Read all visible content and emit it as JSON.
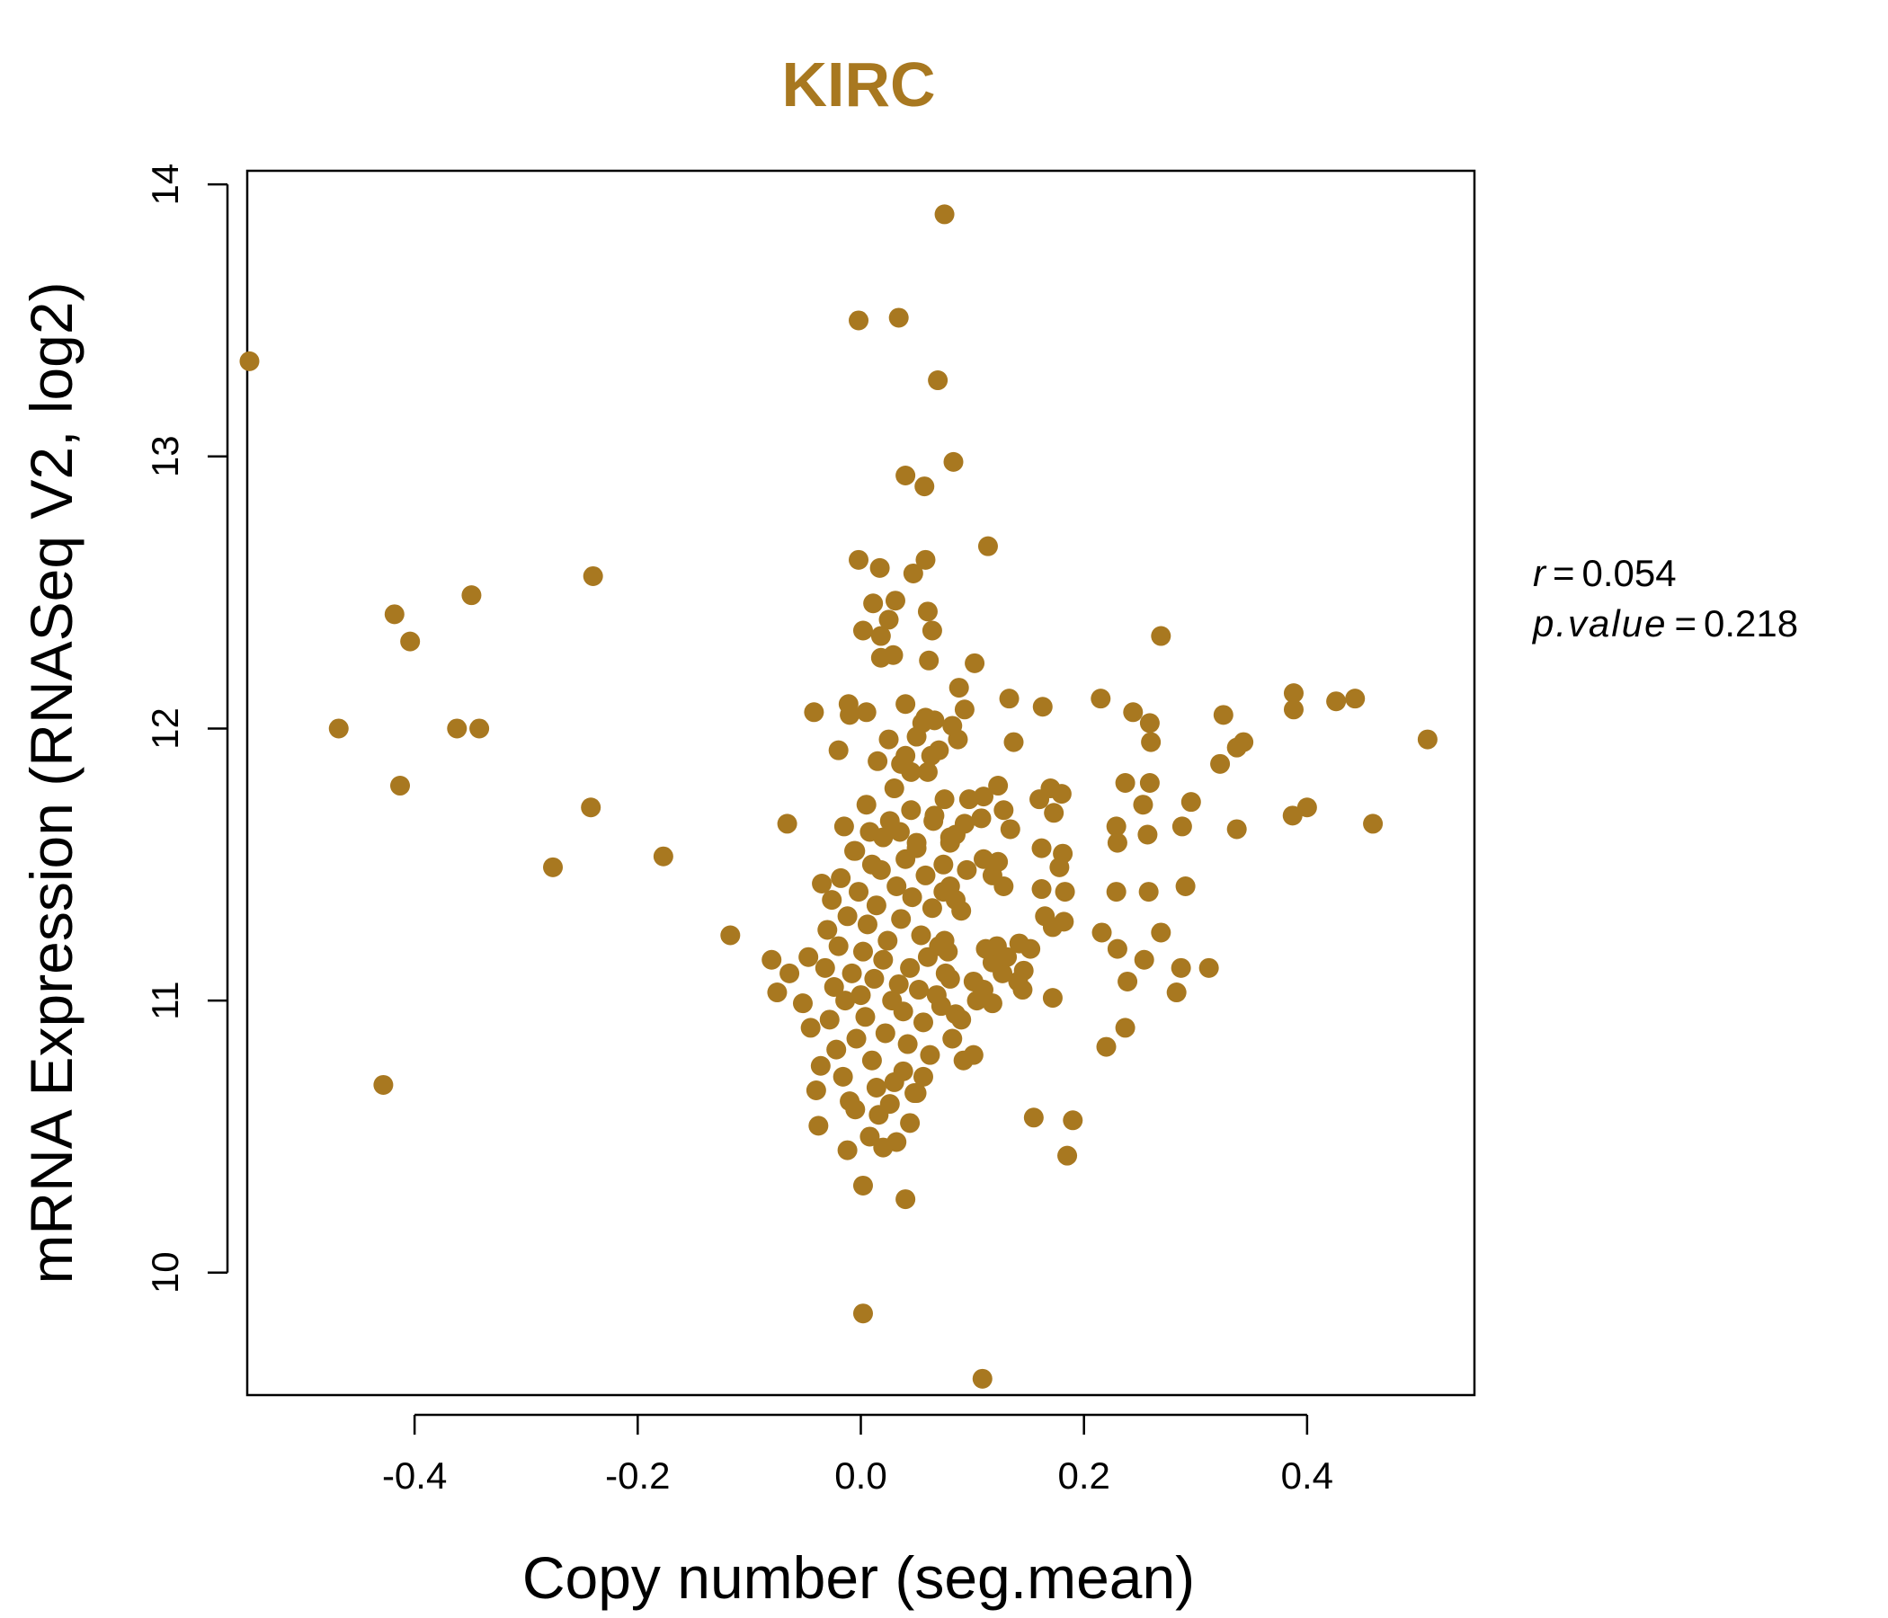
{
  "chart_data": {
    "type": "scatter",
    "title": "KIRC",
    "xlabel": "Copy number (seg.mean)",
    "ylabel": "mRNA Expression (RNASeq V2, log2)",
    "xlim": [
      -0.55,
      0.55
    ],
    "ylim": [
      9.55,
      14.05
    ],
    "x_ticks": [
      "-0.4",
      "-0.2",
      "0.0",
      "0.2",
      "0.4"
    ],
    "x_tick_values": [
      -0.4,
      -0.2,
      0.0,
      0.2,
      0.4
    ],
    "y_ticks": [
      "10",
      "11",
      "12",
      "13",
      "14"
    ],
    "y_tick_values": [
      10,
      11,
      12,
      13,
      14
    ],
    "grid": false,
    "point_color": "#A87820",
    "stats": {
      "r_label": "r",
      "r_value": "0.054",
      "p_label": "p.value",
      "p_value": "0.218"
    },
    "points": [
      [
        -0.548,
        13.35
      ],
      [
        -0.468,
        12.0
      ],
      [
        -0.418,
        12.42
      ],
      [
        -0.404,
        12.32
      ],
      [
        -0.413,
        11.79
      ],
      [
        -0.362,
        12.0
      ],
      [
        -0.349,
        12.49
      ],
      [
        -0.342,
        12.0
      ],
      [
        -0.428,
        10.69
      ],
      [
        -0.276,
        11.49
      ],
      [
        -0.24,
        12.56
      ],
      [
        -0.242,
        11.71
      ],
      [
        -0.177,
        11.53
      ],
      [
        -0.117,
        11.24
      ],
      [
        -0.066,
        11.65
      ],
      [
        -0.08,
        11.15
      ],
      [
        -0.075,
        11.03
      ],
      [
        -0.064,
        11.1
      ],
      [
        -0.052,
        10.99
      ],
      [
        -0.047,
        11.16
      ],
      [
        -0.045,
        10.9
      ],
      [
        -0.04,
        10.67
      ],
      [
        -0.038,
        10.54
      ],
      [
        -0.036,
        10.76
      ],
      [
        -0.035,
        11.43
      ],
      [
        -0.032,
        11.12
      ],
      [
        -0.03,
        11.26
      ],
      [
        -0.028,
        10.93
      ],
      [
        -0.026,
        11.37
      ],
      [
        -0.024,
        11.05
      ],
      [
        -0.022,
        10.82
      ],
      [
        -0.02,
        11.2
      ],
      [
        -0.018,
        11.45
      ],
      [
        -0.016,
        10.72
      ],
      [
        -0.014,
        11.0
      ],
      [
        -0.012,
        11.31
      ],
      [
        -0.01,
        10.63
      ],
      [
        -0.008,
        11.1
      ],
      [
        -0.006,
        11.55
      ],
      [
        -0.004,
        10.86
      ],
      [
        -0.002,
        11.4
      ],
      [
        0.0,
        11.02
      ],
      [
        0.002,
        11.18
      ],
      [
        0.004,
        10.94
      ],
      [
        0.006,
        11.28
      ],
      [
        0.008,
        11.62
      ],
      [
        0.01,
        10.78
      ],
      [
        0.012,
        11.08
      ],
      [
        0.014,
        11.35
      ],
      [
        0.016,
        10.58
      ],
      [
        0.018,
        11.48
      ],
      [
        0.02,
        11.15
      ],
      [
        0.022,
        10.88
      ],
      [
        0.024,
        11.22
      ],
      [
        0.026,
        11.66
      ],
      [
        0.028,
        11.0
      ],
      [
        0.03,
        10.7
      ],
      [
        0.032,
        11.42
      ],
      [
        0.034,
        11.06
      ],
      [
        0.036,
        11.3
      ],
      [
        0.038,
        10.96
      ],
      [
        0.04,
        11.52
      ],
      [
        0.042,
        10.84
      ],
      [
        0.044,
        11.12
      ],
      [
        0.046,
        11.38
      ],
      [
        0.048,
        10.66
      ],
      [
        0.05,
        11.58
      ],
      [
        0.052,
        11.04
      ],
      [
        0.054,
        11.24
      ],
      [
        0.056,
        10.92
      ],
      [
        0.058,
        11.46
      ],
      [
        0.06,
        11.16
      ],
      [
        0.062,
        10.8
      ],
      [
        0.064,
        11.34
      ],
      [
        0.066,
        11.68
      ],
      [
        0.068,
        11.02
      ],
      [
        0.07,
        11.2
      ],
      [
        0.072,
        10.98
      ],
      [
        0.074,
        11.4
      ],
      [
        0.076,
        11.1
      ],
      [
        -0.02,
        11.92
      ],
      [
        -0.015,
        11.64
      ],
      [
        -0.01,
        12.05
      ],
      [
        -0.005,
        11.55
      ],
      [
        0.005,
        11.72
      ],
      [
        0.01,
        11.5
      ],
      [
        0.015,
        11.88
      ],
      [
        0.02,
        11.6
      ],
      [
        0.025,
        11.96
      ],
      [
        0.03,
        11.78
      ],
      [
        0.035,
        11.62
      ],
      [
        0.04,
        11.9
      ],
      [
        0.045,
        11.7
      ],
      [
        0.05,
        11.56
      ],
      [
        0.055,
        12.02
      ],
      [
        0.06,
        11.84
      ],
      [
        0.065,
        11.66
      ],
      [
        0.07,
        11.92
      ],
      [
        0.075,
        11.74
      ],
      [
        0.08,
        11.6
      ],
      [
        -0.012,
        10.45
      ],
      [
        -0.005,
        10.6
      ],
      [
        0.002,
        10.32
      ],
      [
        0.008,
        10.5
      ],
      [
        0.014,
        10.68
      ],
      [
        0.02,
        10.46
      ],
      [
        0.026,
        10.62
      ],
      [
        0.032,
        10.48
      ],
      [
        0.038,
        10.74
      ],
      [
        0.044,
        10.55
      ],
      [
        0.05,
        10.66
      ],
      [
        0.056,
        10.72
      ],
      [
        0.04,
        10.27
      ],
      [
        0.002,
        9.85
      ],
      [
        -0.002,
        13.5
      ],
      [
        0.034,
        13.51
      ],
      [
        0.075,
        13.89
      ],
      [
        0.069,
        13.28
      ],
      [
        0.04,
        12.93
      ],
      [
        0.057,
        12.89
      ],
      [
        0.083,
        12.98
      ],
      [
        0.114,
        12.67
      ],
      [
        -0.002,
        12.62
      ],
      [
        0.017,
        12.59
      ],
      [
        0.047,
        12.57
      ],
      [
        0.058,
        12.62
      ],
      [
        0.011,
        12.46
      ],
      [
        0.031,
        12.47
      ],
      [
        0.025,
        12.4
      ],
      [
        0.06,
        12.43
      ],
      [
        0.018,
        12.34
      ],
      [
        0.002,
        12.36
      ],
      [
        0.064,
        12.36
      ],
      [
        0.018,
        12.26
      ],
      [
        0.029,
        12.27
      ],
      [
        0.061,
        12.25
      ],
      [
        0.102,
        12.24
      ],
      [
        -0.042,
        12.06
      ],
      [
        -0.011,
        12.09
      ],
      [
        0.005,
        12.06
      ],
      [
        0.04,
        12.09
      ],
      [
        0.058,
        12.04
      ],
      [
        0.088,
        12.15
      ],
      [
        0.093,
        12.07
      ],
      [
        0.133,
        12.11
      ],
      [
        0.163,
        12.08
      ],
      [
        0.066,
        12.03
      ],
      [
        0.082,
        12.01
      ],
      [
        0.05,
        11.97
      ],
      [
        0.087,
        11.96
      ],
      [
        0.137,
        11.95
      ],
      [
        0.063,
        11.9
      ],
      [
        0.036,
        11.87
      ],
      [
        0.045,
        11.84
      ],
      [
        0.097,
        11.74
      ],
      [
        0.11,
        11.75
      ],
      [
        0.123,
        11.79
      ],
      [
        0.128,
        11.7
      ],
      [
        0.108,
        11.67
      ],
      [
        0.093,
        11.65
      ],
      [
        0.085,
        11.61
      ],
      [
        0.08,
        11.58
      ],
      [
        0.134,
        11.63
      ],
      [
        0.16,
        11.74
      ],
      [
        0.17,
        11.78
      ],
      [
        0.18,
        11.76
      ],
      [
        0.173,
        11.69
      ],
      [
        0.162,
        11.56
      ],
      [
        0.181,
        11.54
      ],
      [
        0.178,
        11.49
      ],
      [
        0.074,
        11.5
      ],
      [
        0.095,
        11.48
      ],
      [
        0.11,
        11.52
      ],
      [
        0.118,
        11.46
      ],
      [
        0.123,
        11.51
      ],
      [
        0.128,
        11.42
      ],
      [
        0.162,
        11.41
      ],
      [
        0.183,
        11.4
      ],
      [
        0.165,
        11.31
      ],
      [
        0.172,
        11.27
      ],
      [
        0.182,
        11.29
      ],
      [
        0.08,
        11.42
      ],
      [
        0.085,
        11.37
      ],
      [
        0.09,
        11.33
      ],
      [
        0.075,
        11.22
      ],
      [
        0.078,
        11.18
      ],
      [
        0.112,
        11.19
      ],
      [
        0.118,
        11.14
      ],
      [
        0.122,
        11.2
      ],
      [
        0.127,
        11.1
      ],
      [
        0.131,
        11.16
      ],
      [
        0.142,
        11.21
      ],
      [
        0.146,
        11.11
      ],
      [
        0.152,
        11.19
      ],
      [
        0.141,
        11.07
      ],
      [
        0.145,
        11.04
      ],
      [
        0.172,
        11.01
      ],
      [
        0.101,
        11.07
      ],
      [
        0.104,
        11.0
      ],
      [
        0.11,
        11.04
      ],
      [
        0.118,
        10.99
      ],
      [
        0.08,
        11.08
      ],
      [
        0.085,
        10.95
      ],
      [
        0.09,
        10.93
      ],
      [
        0.082,
        10.86
      ],
      [
        0.092,
        10.78
      ],
      [
        0.101,
        10.8
      ],
      [
        0.155,
        10.57
      ],
      [
        0.19,
        10.56
      ],
      [
        0.185,
        10.43
      ],
      [
        0.109,
        9.61
      ],
      [
        0.215,
        12.11
      ],
      [
        0.244,
        12.06
      ],
      [
        0.259,
        12.02
      ],
      [
        0.26,
        11.95
      ],
      [
        0.325,
        12.05
      ],
      [
        0.269,
        12.34
      ],
      [
        0.322,
        11.87
      ],
      [
        0.337,
        11.93
      ],
      [
        0.343,
        11.95
      ],
      [
        0.237,
        11.8
      ],
      [
        0.259,
        11.8
      ],
      [
        0.253,
        11.72
      ],
      [
        0.296,
        11.73
      ],
      [
        0.229,
        11.64
      ],
      [
        0.23,
        11.58
      ],
      [
        0.257,
        11.61
      ],
      [
        0.288,
        11.64
      ],
      [
        0.337,
        11.63
      ],
      [
        0.229,
        11.4
      ],
      [
        0.258,
        11.4
      ],
      [
        0.291,
        11.42
      ],
      [
        0.216,
        11.25
      ],
      [
        0.23,
        11.19
      ],
      [
        0.269,
        11.25
      ],
      [
        0.254,
        11.15
      ],
      [
        0.287,
        11.12
      ],
      [
        0.312,
        11.12
      ],
      [
        0.239,
        11.07
      ],
      [
        0.283,
        11.03
      ],
      [
        0.237,
        10.9
      ],
      [
        0.22,
        10.83
      ],
      [
        0.388,
        12.13
      ],
      [
        0.388,
        12.07
      ],
      [
        0.426,
        12.1
      ],
      [
        0.443,
        12.11
      ],
      [
        0.508,
        11.96
      ],
      [
        0.387,
        11.68
      ],
      [
        0.4,
        11.71
      ],
      [
        0.459,
        11.65
      ]
    ]
  }
}
